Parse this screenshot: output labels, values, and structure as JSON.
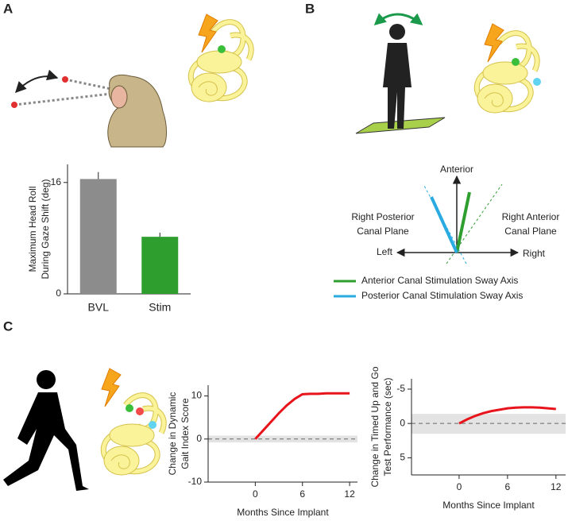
{
  "panel_labels": [
    "A",
    "B",
    "C"
  ],
  "diagram": {
    "up": "Anterior",
    "left": "Left",
    "right": "Right",
    "planes": [
      [
        "Right Posterior",
        "Canal Plane"
      ],
      [
        "Right Anterior",
        "Canal Plane"
      ]
    ],
    "legend": [
      {
        "name": "Anterior Canal Stimulation Sway Axis",
        "color": "#2e9e2e"
      },
      {
        "name": "Posterior Canal Stimulation Sway Axis",
        "color": "#29abe2"
      }
    ]
  },
  "chart_data": [
    {
      "type": "bar",
      "ylabel": [
        "Maximum Head Roll",
        "During Gaze Shift (deg)"
      ],
      "categories": [
        "BVL",
        "Stim"
      ],
      "values": [
        16.5,
        8.2
      ],
      "errors": [
        1.0,
        0.6
      ],
      "colors": [
        "#8c8c8c",
        "#2e9e2e"
      ],
      "ylim": [
        0,
        18.6
      ],
      "yticks": [
        0,
        16
      ]
    },
    {
      "type": "line",
      "ylabel": [
        "Change in Dynamic",
        "Gait Index Score"
      ],
      "xlabel": "Months Since Implant",
      "x": [
        0,
        1,
        2,
        3,
        4,
        5,
        6,
        7,
        8,
        9,
        10,
        11,
        12
      ],
      "series": [
        {
          "color": "#e8141b",
          "values": [
            0,
            2,
            4,
            6,
            7.8,
            9.3,
            10.4,
            10.5,
            10.5,
            10.6,
            10.6,
            10.6,
            10.6
          ]
        }
      ],
      "xlim": [
        -6,
        13
      ],
      "xticks": [
        0,
        6,
        12
      ],
      "ylim": [
        -10,
        12.5
      ],
      "yticks": [
        -10,
        0,
        10
      ],
      "band": [
        -0.8,
        0.8
      ],
      "reference_line": 0
    },
    {
      "type": "line",
      "ylabel": [
        "Change in Timed Up and Go",
        "Test Performance (sec)"
      ],
      "xlabel": "Months Since Implant",
      "x": [
        0,
        1,
        2,
        3,
        4,
        5,
        6,
        7,
        8,
        9,
        10,
        11,
        12
      ],
      "series": [
        {
          "color": "#e8141b",
          "values": [
            0,
            -0.6,
            -1.1,
            -1.5,
            -1.8,
            -2.0,
            -2.2,
            -2.3,
            -2.35,
            -2.35,
            -2.3,
            -2.2,
            -2.1
          ]
        }
      ],
      "xlim": [
        -5.9,
        13.2
      ],
      "xticks": [
        0,
        6,
        12
      ],
      "ylim": [
        7.5,
        -6.5
      ],
      "yticks": [
        -5,
        0,
        5
      ],
      "band": [
        -1.4,
        1.5
      ],
      "reference_line": 0
    }
  ]
}
